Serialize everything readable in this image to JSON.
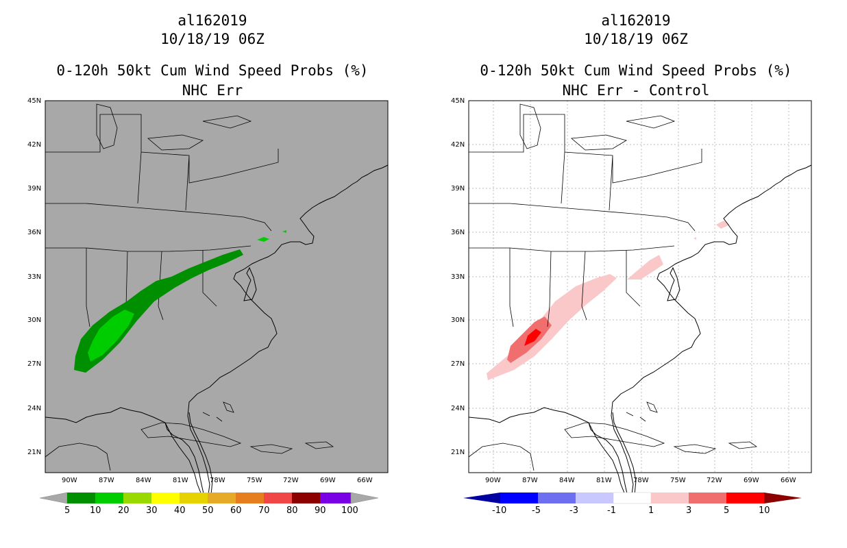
{
  "storm_id": "al162019",
  "init_time": "10/18/19 06Z",
  "left_panel": {
    "title": "0-120h 50kt Cum Wind Speed Probs (%)",
    "subtitle": "NHC Err",
    "background_color": "#a8a8a8",
    "colorbar": {
      "labels": [
        "5",
        "10",
        "20",
        "30",
        "40",
        "50",
        "60",
        "70",
        "80",
        "90",
        "100"
      ],
      "colors": [
        "#008f00",
        "#00cd00",
        "#99d900",
        "#ffff00",
        "#e6d200",
        "#e6aa28",
        "#e67d1e",
        "#f04646",
        "#8c0000",
        "#7a00e6"
      ]
    }
  },
  "right_panel": {
    "title": "0-120h 50kt Cum Wind Speed Probs (%)",
    "subtitle": "NHC Err - Control",
    "background_color": "#ffffff",
    "colorbar": {
      "labels": [
        "-10",
        "-5",
        "-3",
        "-1",
        "1",
        "3",
        "5",
        "10"
      ],
      "colors": [
        "#0000a0",
        "#0000ff",
        "#6e6ef0",
        "#c8c8ff",
        "#ffffff",
        "#fac8c8",
        "#f06e6e",
        "#ff0000",
        "#8c0000"
      ]
    }
  },
  "lat_labels": [
    "45N",
    "42N",
    "39N",
    "36N",
    "33N",
    "30N",
    "27N",
    "24N",
    "21N"
  ],
  "lon_labels": [
    "90W",
    "87W",
    "84W",
    "81W",
    "78W",
    "75W",
    "72W",
    "69W",
    "66W"
  ]
}
